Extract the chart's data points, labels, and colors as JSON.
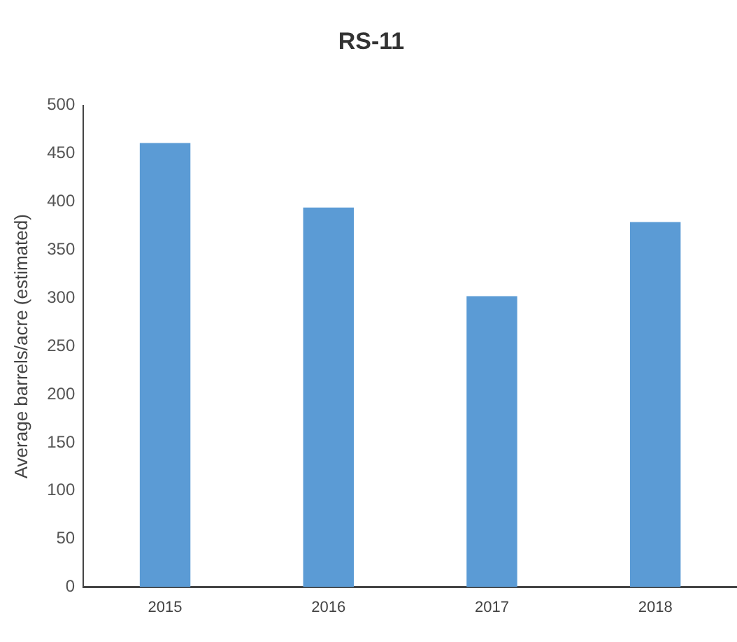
{
  "chart_data": {
    "type": "bar",
    "title": "RS-11",
    "ylabel": "Average barrels/acre (estimated)",
    "categories": [
      "2015",
      "2016",
      "2017",
      "2018"
    ],
    "values": [
      461,
      394,
      302,
      379
    ],
    "color": "#5b9bd5",
    "ylim": [
      0,
      500
    ],
    "yticks": [
      0,
      50,
      100,
      150,
      200,
      250,
      300,
      350,
      400,
      450,
      500
    ],
    "grid": false,
    "legend": false
  }
}
